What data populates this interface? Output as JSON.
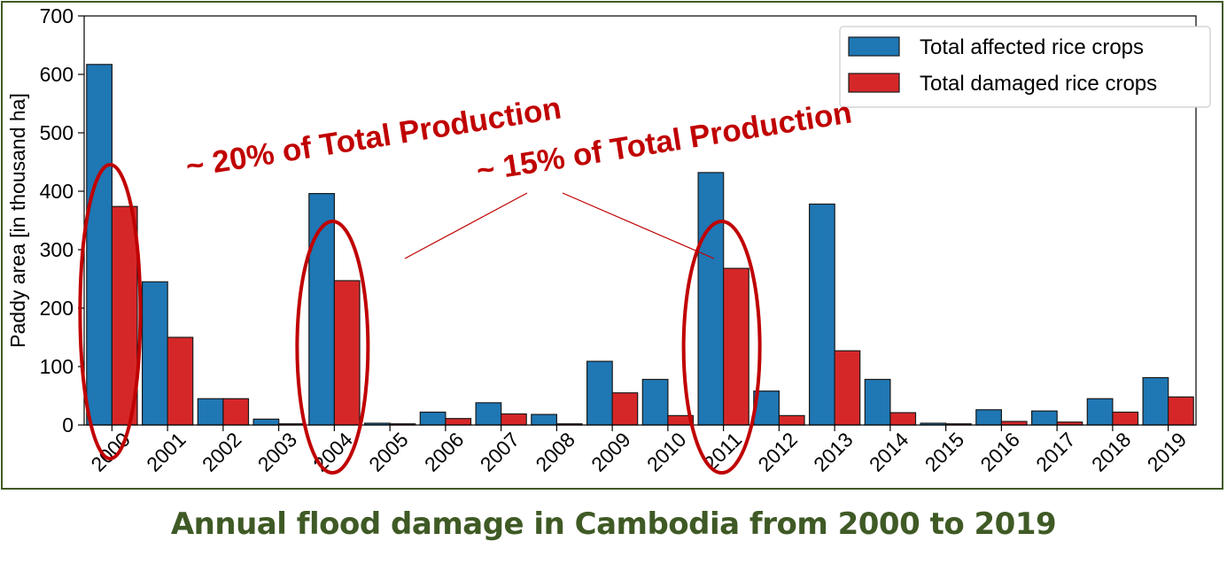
{
  "chart_data": {
    "type": "bar",
    "categories": [
      "2000",
      "2001",
      "2002",
      "2003",
      "2004",
      "2005",
      "2006",
      "2007",
      "2008",
      "2009",
      "2010",
      "2011",
      "2012",
      "2013",
      "2014",
      "2015",
      "2016",
      "2017",
      "2018",
      "2019"
    ],
    "series": [
      {
        "name": "Total affected rice crops",
        "color": "#1f77b4",
        "values": [
          617,
          245,
          45,
          10,
          396,
          3,
          22,
          38,
          18,
          109,
          78,
          432,
          58,
          378,
          78,
          3,
          26,
          24,
          45,
          81
        ]
      },
      {
        "name": "Total damaged rice crops",
        "color": "#d62728",
        "values": [
          374,
          150,
          45,
          2,
          247,
          2,
          11,
          19,
          2,
          55,
          16,
          268,
          16,
          127,
          21,
          2,
          6,
          5,
          22,
          48
        ]
      }
    ],
    "ylabel": "Paddy area [in thousand ha]",
    "ylim": [
      0,
      700
    ],
    "yticks": [
      0,
      100,
      200,
      300,
      400,
      500,
      600,
      700
    ],
    "legend_position": "top-right",
    "grid": false,
    "annotations": [
      {
        "text": "~ 20% of Total Production",
        "highlight": [
          "2000"
        ],
        "color": "#c00000"
      },
      {
        "text": "~ 15% of Total Production",
        "highlight": [
          "2004",
          "2011"
        ],
        "color": "#c00000"
      }
    ]
  },
  "caption": "Annual flood damage in Cambodia from 2000 to 2019"
}
